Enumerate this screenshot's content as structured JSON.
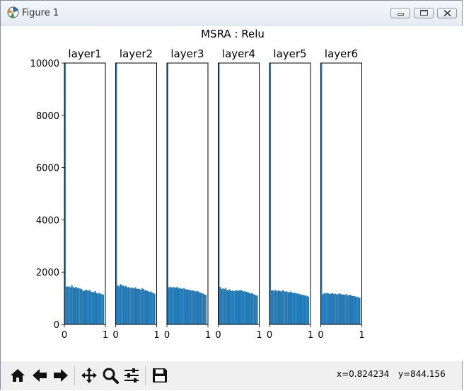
{
  "window": {
    "title": "Figure 1"
  },
  "chart_data": {
    "type": "bar",
    "title": "MSRA : Relu",
    "xlim": [
      0,
      1
    ],
    "ylim": [
      0,
      10000
    ],
    "x_ticks": [
      "0",
      "1"
    ],
    "y_ticks": [
      "0",
      "2000",
      "4000",
      "6000",
      "8000",
      "10000"
    ],
    "bins": 30,
    "bar_color": "#1f77b4",
    "series": [
      {
        "name": "layer1",
        "first_bin": 10000,
        "values": [
          1450,
          1440,
          1455,
          1420,
          1505,
          1430,
          1400,
          1440,
          1385,
          1395,
          1370,
          1360,
          1300,
          1280,
          1330,
          1310,
          1290,
          1315,
          1260,
          1240,
          1230,
          1280,
          1200,
          1180,
          1210,
          1175,
          1160,
          1140
        ]
      },
      {
        "name": "layer2",
        "first_bin": 10000,
        "values": [
          1490,
          1460,
          1535,
          1510,
          1480,
          1450,
          1470,
          1420,
          1430,
          1395,
          1410,
          1400,
          1380,
          1420,
          1360,
          1370,
          1350,
          1330,
          1380,
          1350,
          1300,
          1310,
          1270,
          1250,
          1260,
          1230,
          1200,
          1180
        ]
      },
      {
        "name": "layer3",
        "first_bin": 10000,
        "values": [
          1420,
          1440,
          1410,
          1430,
          1420,
          1400,
          1440,
          1380,
          1400,
          1370,
          1360,
          1390,
          1350,
          1330,
          1340,
          1320,
          1300,
          1310,
          1290,
          1270,
          1260,
          1280,
          1240,
          1210,
          1200,
          1180,
          1150,
          1130
        ]
      },
      {
        "name": "layer4",
        "first_bin": 10000,
        "values": [
          1430,
          1350,
          1380,
          1350,
          1400,
          1320,
          1300,
          1340,
          1280,
          1300,
          1270,
          1290,
          1310,
          1280,
          1300,
          1320,
          1290,
          1260,
          1270,
          1250,
          1230,
          1220,
          1180,
          1200,
          1170,
          1140,
          1120,
          1100
        ]
      },
      {
        "name": "layer5",
        "first_bin": 10000,
        "values": [
          1300,
          1310,
          1280,
          1320,
          1270,
          1300,
          1280,
          1260,
          1300,
          1290,
          1250,
          1270,
          1240,
          1230,
          1260,
          1220,
          1200,
          1210,
          1190,
          1180,
          1170,
          1150,
          1140,
          1130,
          1110,
          1100,
          1090,
          1060
        ]
      },
      {
        "name": "layer6",
        "first_bin": 10000,
        "values": [
          1150,
          1200,
          1180,
          1210,
          1190,
          1160,
          1180,
          1200,
          1170,
          1180,
          1160,
          1150,
          1190,
          1170,
          1140,
          1150,
          1130,
          1160,
          1120,
          1110,
          1130,
          1100,
          1090,
          1080,
          1070,
          1050,
          1040,
          1020
        ]
      }
    ]
  },
  "toolbar": {
    "buttons": [
      "home-icon",
      "back-arrow-icon",
      "forward-arrow-icon",
      "pan-icon",
      "zoom-icon",
      "configure-subplots-icon",
      "save-icon"
    ],
    "x_readout": "x=0.824234",
    "y_readout": "y=844.156"
  }
}
